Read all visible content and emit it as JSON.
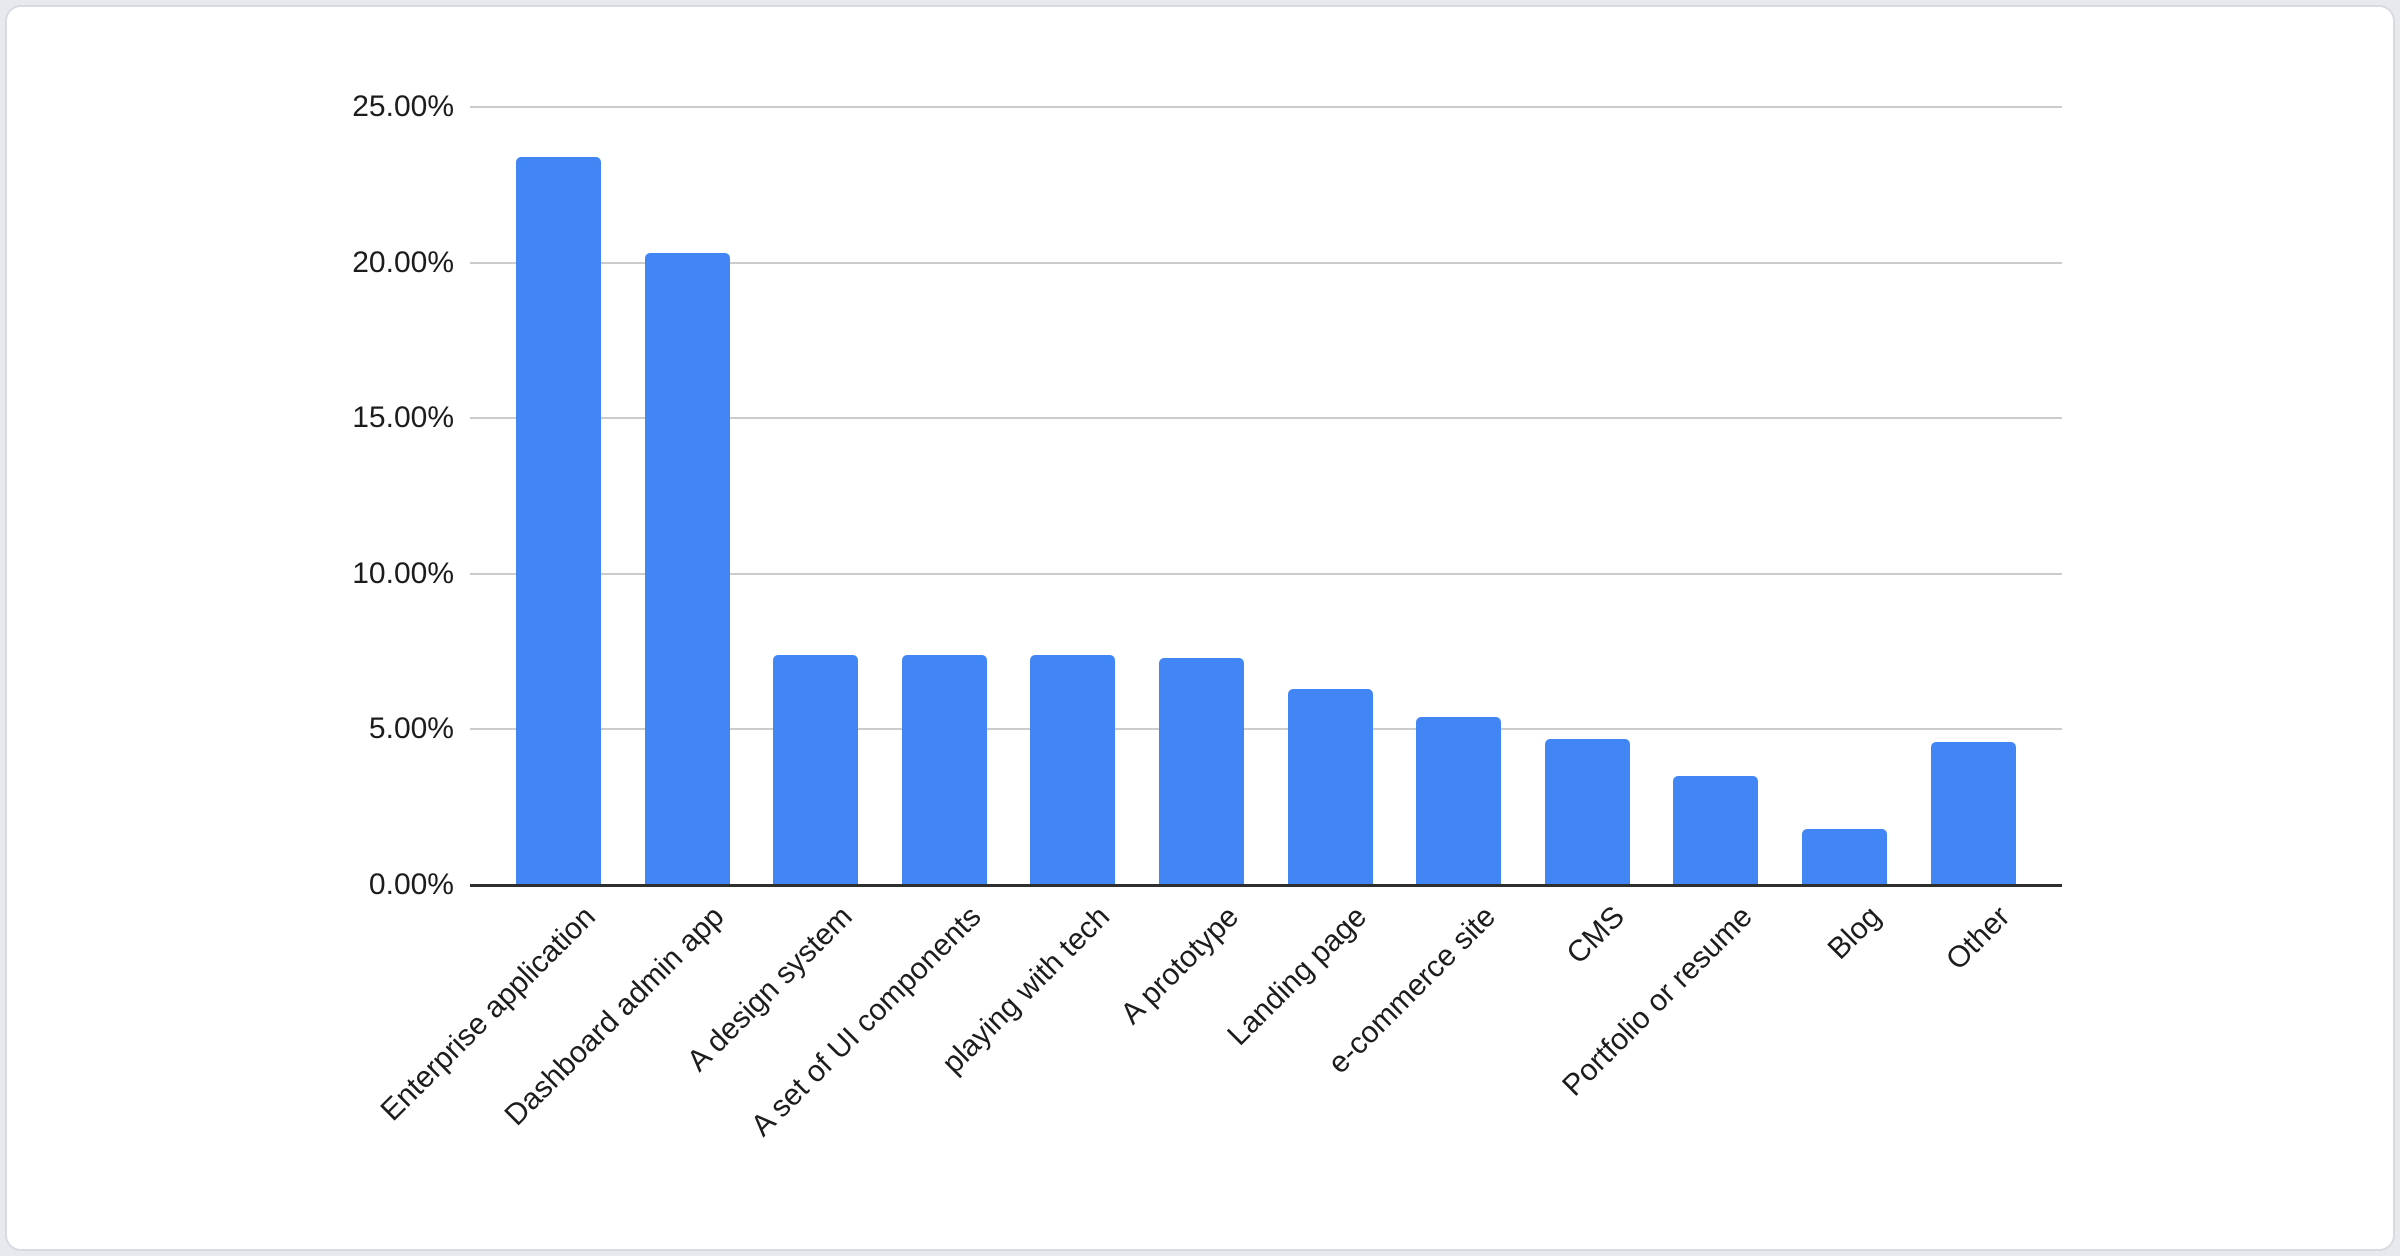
{
  "page": {
    "background_color": "#e7e9ec",
    "card_background_color": "#ffffff",
    "card_border_color": "#d8dbe0"
  },
  "chart_data": {
    "type": "bar",
    "title": "",
    "xlabel": "",
    "ylabel": "",
    "categories": [
      "Enterprise application",
      "Dashboard admin app",
      "A design system",
      "A set of UI components",
      "playing with tech",
      "A prototype",
      "Landing page",
      "e-commerce site",
      "CMS",
      "Portfolio or resume",
      "Blog",
      "Other"
    ],
    "values": [
      23.4,
      20.3,
      7.4,
      7.4,
      7.4,
      7.3,
      6.3,
      5.4,
      4.7,
      3.5,
      1.8,
      4.6
    ],
    "value_unit": "%",
    "ylim": [
      0,
      25
    ],
    "yticks": [
      {
        "label": "0.00%",
        "value": 0
      },
      {
        "label": "5.00%",
        "value": 5
      },
      {
        "label": "10.00%",
        "value": 10
      },
      {
        "label": "15.00%",
        "value": 15
      },
      {
        "label": "20.00%",
        "value": 20
      },
      {
        "label": "25.00%",
        "value": 25
      }
    ],
    "grid": true,
    "legend": "none",
    "bar_color": "#4285f4",
    "gridline_color": "#cccccc",
    "axis_line_color": "#2f2f2f",
    "tick_label_color": "#1c1c1c",
    "x_label_rotation_deg": -45
  }
}
